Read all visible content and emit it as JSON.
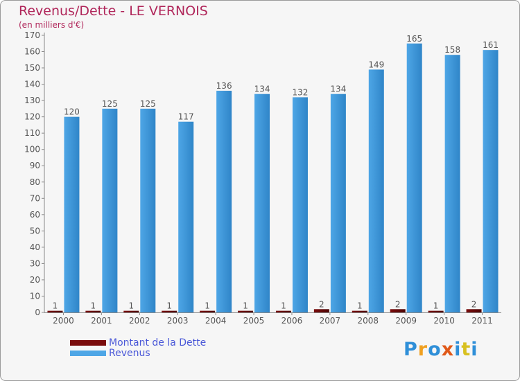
{
  "header": {
    "title": "Revenus/Dette - LE VERNOIS",
    "subtitle": "(en milliers d'€)"
  },
  "colors": {
    "revenus": "#4ea6e6",
    "revenus_dark": "#2f85c8",
    "dette": "#7a0c0c",
    "dette_dark": "#4d0606",
    "title": "#b0265a",
    "legend_text": "#4a58d8"
  },
  "chart_data": {
    "type": "bar",
    "title": "Revenus/Dette - LE VERNOIS",
    "subtitle": "(en milliers d'€)",
    "categories": [
      "2000",
      "2001",
      "2002",
      "2003",
      "2004",
      "2005",
      "2006",
      "2007",
      "2008",
      "2009",
      "2010",
      "2011"
    ],
    "series": [
      {
        "name": "Montant de la Dette",
        "values": [
          1,
          1,
          1,
          1,
          1,
          1,
          1,
          2,
          1,
          2,
          1,
          2
        ]
      },
      {
        "name": "Revenus",
        "values": [
          120,
          125,
          125,
          117,
          136,
          134,
          132,
          134,
          149,
          165,
          158,
          161
        ]
      }
    ],
    "ylim": [
      0,
      170
    ],
    "yticks": [
      0,
      10,
      20,
      30,
      40,
      50,
      60,
      70,
      80,
      90,
      100,
      110,
      120,
      130,
      140,
      150,
      160,
      170
    ],
    "grid": false,
    "legend_position": "bottom-left"
  },
  "legend": {
    "items": [
      {
        "label": "Montant de la Dette",
        "color": "#7a0c0c"
      },
      {
        "label": "Revenus",
        "color": "#4ea6e6"
      }
    ]
  },
  "logo": {
    "text": "Proxiti",
    "letter_colors": [
      "#2f8fd8",
      "#f0a020",
      "#2f8fd8",
      "#e05818",
      "#2f8fd8",
      "#d8c020",
      "#2f8fd8"
    ]
  }
}
